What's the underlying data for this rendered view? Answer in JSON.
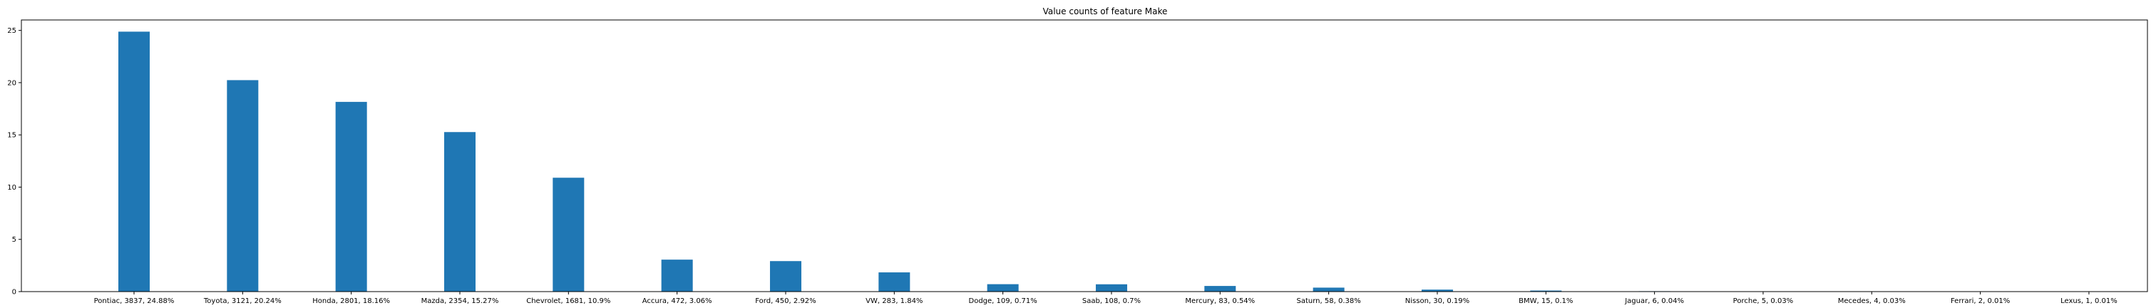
{
  "chart_data": {
    "type": "bar",
    "title": "Value counts of feature Make",
    "xlabel": "",
    "ylabel": "",
    "ylim": [
      0,
      26
    ],
    "yticks": [
      0,
      5,
      10,
      15,
      20,
      25
    ],
    "grid": false,
    "legend": "none",
    "bar_color": "#1f77b4",
    "categories": [
      "Pontiac, 3837, 24.88%",
      "Toyota, 3121, 20.24%",
      "Honda, 2801, 18.16%",
      "Mazda, 2354, 15.27%",
      "Chevrolet, 1681, 10.9%",
      "Accura, 472, 3.06%",
      "Ford, 450, 2.92%",
      "VW, 283, 1.84%",
      "Dodge, 109, 0.71%",
      "Saab, 108, 0.7%",
      "Mercury, 83, 0.54%",
      "Saturn, 58, 0.38%",
      "Nisson, 30, 0.19%",
      "BMW, 15, 0.1%",
      "Jaguar, 6, 0.04%",
      "Porche, 5, 0.03%",
      "Mecedes, 4, 0.03%",
      "Ferrari, 2, 0.01%",
      "Lexus, 1, 0.01%"
    ],
    "values": [
      24.88,
      20.24,
      18.16,
      15.27,
      10.9,
      3.06,
      2.92,
      1.84,
      0.71,
      0.7,
      0.54,
      0.38,
      0.19,
      0.1,
      0.04,
      0.03,
      0.03,
      0.01,
      0.01
    ]
  }
}
